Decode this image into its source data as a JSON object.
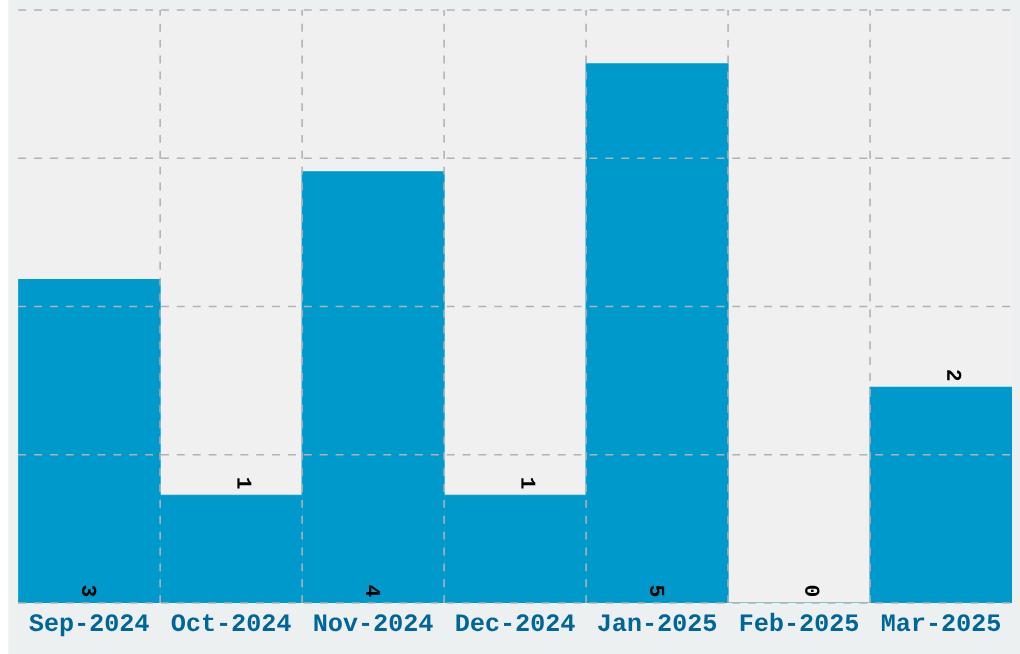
{
  "chart_data": {
    "type": "bar",
    "categories": [
      "Sep-2024",
      "Oct-2024",
      "Nov-2024",
      "Dec-2024",
      "Jan-2025",
      "Feb-2025",
      "Mar-2025"
    ],
    "values": [
      3,
      1,
      4,
      1,
      5,
      0,
      2
    ],
    "color": "#0099cc",
    "ylim": [
      0,
      5.5
    ],
    "yticks": [
      {
        "value": 0,
        "label": null
      },
      {
        "value": 1.375,
        "label": null
      },
      {
        "value": 2.75,
        "label": null
      },
      {
        "value": 4.125,
        "label": null
      },
      {
        "value": 5.5,
        "label": null
      }
    ],
    "tick_labels": "x",
    "grid": true,
    "data_labels": true
  }
}
